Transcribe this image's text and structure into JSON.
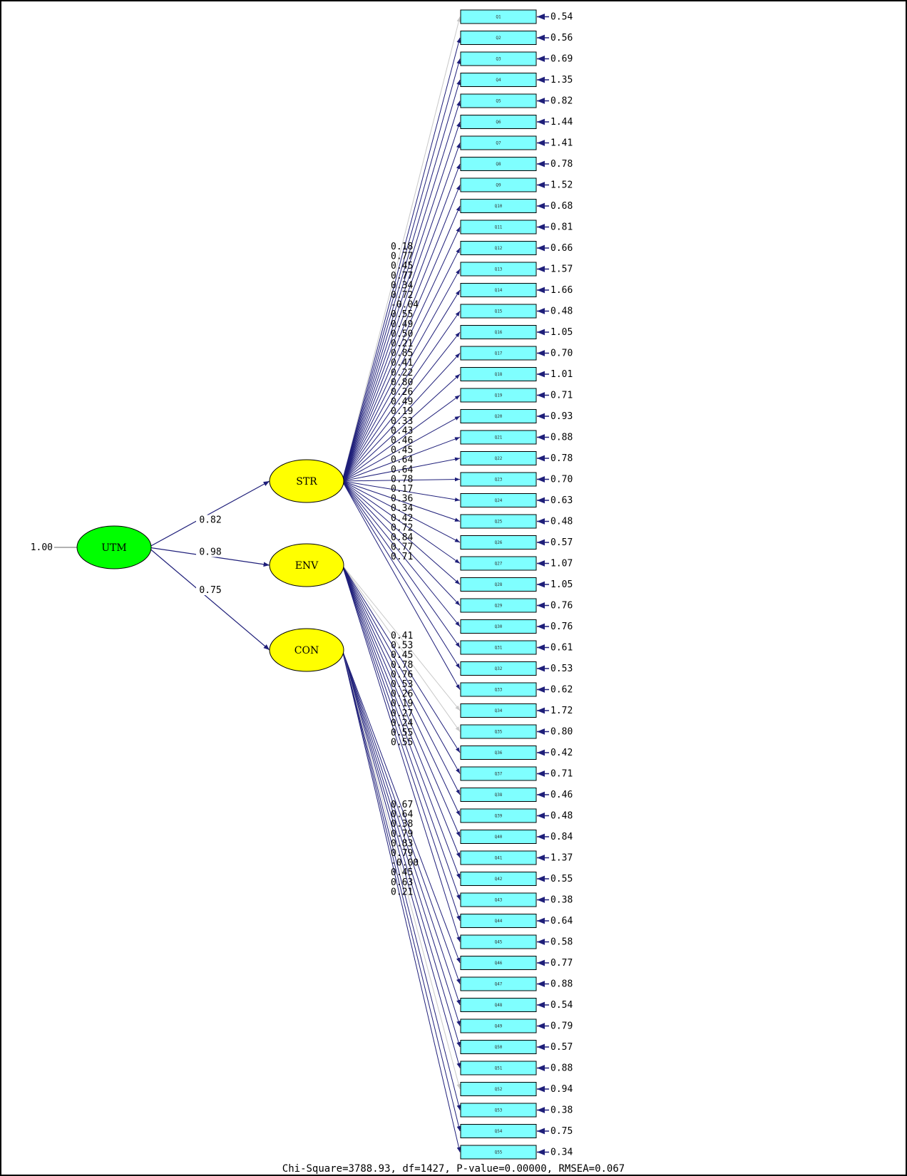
{
  "colors": {
    "path": "#1f1f7a",
    "item_fill": "#7fffff",
    "latent_fill": "#ffff00",
    "root_fill": "#00ff00",
    "faint_path": "#c8c8c8"
  },
  "latents": {
    "root": {
      "name": "UTM",
      "variance": "1.00"
    },
    "factors": [
      {
        "name": "STR",
        "loading": "0.82"
      },
      {
        "name": "ENV",
        "loading": "0.98"
      },
      {
        "name": "CON",
        "loading": "0.75"
      }
    ]
  },
  "items": [
    {
      "label": "Q1",
      "error": "0.54"
    },
    {
      "label": "Q2",
      "error": "0.56"
    },
    {
      "label": "Q3",
      "error": "0.69"
    },
    {
      "label": "Q4",
      "error": "1.35"
    },
    {
      "label": "Q5",
      "error": "0.82"
    },
    {
      "label": "Q6",
      "error": "1.44"
    },
    {
      "label": "Q7",
      "error": "1.41"
    },
    {
      "label": "Q8",
      "error": "0.78"
    },
    {
      "label": "Q9",
      "error": "1.52"
    },
    {
      "label": "Q10",
      "error": "0.68"
    },
    {
      "label": "Q11",
      "error": "0.81"
    },
    {
      "label": "Q12",
      "error": "0.66"
    },
    {
      "label": "Q13",
      "error": "1.57"
    },
    {
      "label": "Q14",
      "error": "1.66"
    },
    {
      "label": "Q15",
      "error": "0.48"
    },
    {
      "label": "Q16",
      "error": "1.05"
    },
    {
      "label": "Q17",
      "error": "0.70"
    },
    {
      "label": "Q18",
      "error": "1.01"
    },
    {
      "label": "Q19",
      "error": "0.71"
    },
    {
      "label": "Q20",
      "error": "0.93"
    },
    {
      "label": "Q21",
      "error": "0.88"
    },
    {
      "label": "Q22",
      "error": "0.78"
    },
    {
      "label": "Q23",
      "error": "0.70"
    },
    {
      "label": "Q24",
      "error": "0.63"
    },
    {
      "label": "Q25",
      "error": "0.48"
    },
    {
      "label": "Q26",
      "error": "0.57"
    },
    {
      "label": "Q27",
      "error": "1.07"
    },
    {
      "label": "Q28",
      "error": "1.05"
    },
    {
      "label": "Q29",
      "error": "0.76"
    },
    {
      "label": "Q30",
      "error": "0.76"
    },
    {
      "label": "Q31",
      "error": "0.61"
    },
    {
      "label": "Q32",
      "error": "0.53"
    },
    {
      "label": "Q33",
      "error": "0.62"
    },
    {
      "label": "Q34",
      "error": "1.72"
    },
    {
      "label": "Q35",
      "error": "0.80"
    },
    {
      "label": "Q36",
      "error": "0.42"
    },
    {
      "label": "Q37",
      "error": "0.71"
    },
    {
      "label": "Q38",
      "error": "0.46"
    },
    {
      "label": "Q39",
      "error": "0.48"
    },
    {
      "label": "Q40",
      "error": "0.84"
    },
    {
      "label": "Q41",
      "error": "1.37"
    },
    {
      "label": "Q42",
      "error": "0.55"
    },
    {
      "label": "Q43",
      "error": "0.38"
    },
    {
      "label": "Q44",
      "error": "0.64"
    },
    {
      "label": "Q45",
      "error": "0.58"
    },
    {
      "label": "Q46",
      "error": "0.77"
    },
    {
      "label": "Q47",
      "error": "0.88"
    },
    {
      "label": "Q48",
      "error": "0.54"
    },
    {
      "label": "Q49",
      "error": "0.79"
    },
    {
      "label": "Q50",
      "error": "0.57"
    },
    {
      "label": "Q51",
      "error": "0.88"
    },
    {
      "label": "Q52",
      "error": "0.94"
    },
    {
      "label": "Q53",
      "error": "0.38"
    },
    {
      "label": "Q54",
      "error": "0.75"
    },
    {
      "label": "Q55",
      "error": "0.34"
    }
  ],
  "loadings": {
    "STR": [
      "0.18",
      "0.77",
      "0.45",
      "0.77",
      "0.34",
      "0.72",
      "-0.04",
      "0.55",
      "0.49",
      "0.50",
      "0.21",
      "0.85",
      "0.41",
      "0.22",
      "0.80",
      "0.26",
      "0.49",
      "0.19",
      "0.33",
      "0.43",
      "0.46",
      "0.45",
      "0.64",
      "0.64",
      "0.78",
      "0.17",
      "0.36",
      "0.34",
      "0.42",
      "0.72",
      "0.84",
      "0.77",
      "0.71"
    ],
    "ENV": [
      "0.41",
      "0.53",
      "0.45",
      "0.78",
      "0.76",
      "0.53",
      "0.26",
      "0.19",
      "0.27",
      "0.24",
      "0.55",
      "0.55"
    ],
    "CON": [
      "0.67",
      "0.64",
      "0.38",
      "0.79",
      "0.83",
      "0.79",
      "-0.00",
      "0.45",
      "0.63",
      "0.21"
    ]
  },
  "factor_items": {
    "STR": {
      "start": 1,
      "end": 33
    },
    "ENV": {
      "start": 34,
      "end": 45
    },
    "CON": {
      "start": 46,
      "end": 55
    }
  },
  "fit_statistics": "Chi-Square=3788.93, df=1427, P-value=0.00000, RMSEA=0.067"
}
